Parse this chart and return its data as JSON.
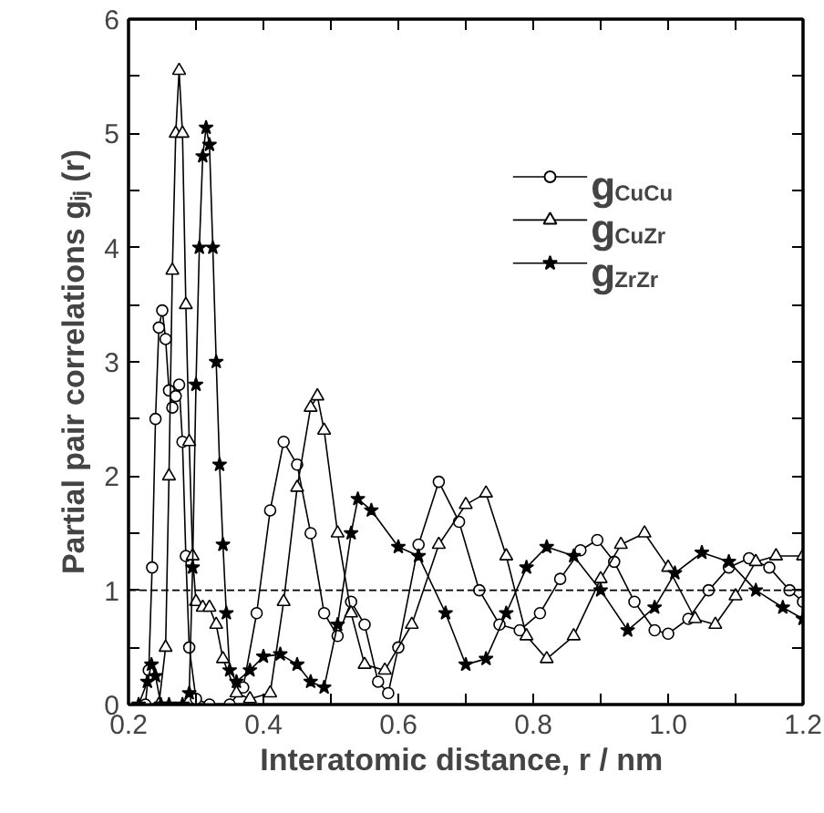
{
  "chart_data": {
    "type": "line",
    "xlabel": "Interatomic distance,  r / nm",
    "ylabel": "Partial pair correlations gᵢⱼ (r)",
    "xlim": [
      0.2,
      1.2
    ],
    "ylim": [
      0,
      6
    ],
    "xticks": [
      0.2,
      {
        "value": 0.3,
        "label": null
      },
      0.4,
      {
        "value": 0.5,
        "label": null
      },
      0.6,
      {
        "value": 0.7,
        "label": null
      },
      0.8,
      {
        "value": 0.9,
        "label": null
      },
      {
        "value": 1.0,
        "label": "1.0"
      },
      {
        "value": 1.1,
        "label": null
      },
      1.2
    ],
    "yticks": [
      0,
      {
        "value": 0.5,
        "label": null
      },
      1,
      {
        "value": 1.5,
        "label": null
      },
      2,
      {
        "value": 2.5,
        "label": null
      },
      3,
      {
        "value": 3.5,
        "label": null
      },
      4,
      {
        "value": 4.5,
        "label": null
      },
      5,
      {
        "value": 5.5,
        "label": null
      },
      6
    ],
    "grid": false,
    "legend": "top right",
    "line_style": "solid",
    "ref_lines": [
      {
        "axis": "y",
        "value": 1,
        "line_style": "dashed"
      }
    ],
    "series": [
      {
        "name": "g$_{CuCu}$",
        "marker": "circle",
        "color": "#000000",
        "x": [
          0.225,
          0.23,
          0.235,
          0.24,
          0.245,
          0.25,
          0.255,
          0.26,
          0.265,
          0.27,
          0.275,
          0.28,
          0.285,
          0.29,
          0.3,
          0.32,
          0.35,
          0.37,
          0.39,
          0.41,
          0.43,
          0.45,
          0.47,
          0.49,
          0.51,
          0.53,
          0.55,
          0.57,
          0.585,
          0.6,
          0.63,
          0.66,
          0.69,
          0.72,
          0.75,
          0.78,
          0.81,
          0.84,
          0.87,
          0.895,
          0.92,
          0.95,
          0.98,
          1.0,
          1.03,
          1.06,
          1.09,
          1.12,
          1.15,
          1.18,
          1.2
        ],
        "values": [
          0,
          0.3,
          1.2,
          2.5,
          3.3,
          3.45,
          3.2,
          2.75,
          2.6,
          2.7,
          2.8,
          2.3,
          1.3,
          0.5,
          0.05,
          0,
          0,
          0.15,
          0.8,
          1.7,
          2.3,
          2.1,
          1.5,
          0.8,
          0.6,
          0.9,
          0.7,
          0.2,
          0.1,
          0.5,
          1.4,
          1.95,
          1.6,
          1.0,
          0.7,
          0.65,
          0.8,
          1.1,
          1.35,
          1.44,
          1.25,
          0.9,
          0.65,
          0.62,
          0.75,
          1.0,
          1.2,
          1.28,
          1.2,
          1.0,
          0.9
        ]
      },
      {
        "name": "g$_{CuZr}$",
        "marker": "triangle",
        "color": "#000000",
        "x": [
          0.245,
          0.255,
          0.26,
          0.265,
          0.27,
          0.275,
          0.28,
          0.285,
          0.29,
          0.295,
          0.3,
          0.31,
          0.32,
          0.33,
          0.34,
          0.36,
          0.38,
          0.41,
          0.43,
          0.45,
          0.47,
          0.48,
          0.49,
          0.51,
          0.53,
          0.55,
          0.58,
          0.62,
          0.66,
          0.7,
          0.73,
          0.76,
          0.79,
          0.82,
          0.86,
          0.9,
          0.93,
          0.965,
          1.0,
          1.04,
          1.07,
          1.1,
          1.13,
          1.16,
          1.2
        ],
        "values": [
          0,
          0.5,
          2.0,
          3.8,
          5.0,
          5.55,
          5.0,
          3.5,
          2.3,
          1.3,
          0.9,
          0.85,
          0.85,
          0.7,
          0.4,
          0.1,
          0.05,
          0.1,
          0.9,
          1.9,
          2.6,
          2.7,
          2.4,
          1.5,
          0.8,
          0.35,
          0.3,
          0.7,
          1.4,
          1.75,
          1.85,
          1.3,
          0.6,
          0.4,
          0.6,
          1.1,
          1.4,
          1.5,
          1.2,
          0.75,
          0.7,
          0.95,
          1.25,
          1.3,
          1.3
        ]
      },
      {
        "name": "g$_{ZrZr}$",
        "marker": "star",
        "color": "#000000",
        "x": [
          0.215,
          0.228,
          0.234,
          0.24,
          0.248,
          0.26,
          0.28,
          0.29,
          0.295,
          0.3,
          0.305,
          0.31,
          0.315,
          0.32,
          0.325,
          0.33,
          0.335,
          0.34,
          0.345,
          0.35,
          0.36,
          0.38,
          0.4,
          0.425,
          0.45,
          0.47,
          0.49,
          0.51,
          0.53,
          0.54,
          0.56,
          0.6,
          0.63,
          0.67,
          0.7,
          0.73,
          0.76,
          0.79,
          0.82,
          0.86,
          0.9,
          0.94,
          0.98,
          1.01,
          1.05,
          1.09,
          1.13,
          1.17,
          1.2
        ],
        "values": [
          0,
          0.2,
          0.35,
          0.25,
          0,
          0,
          0,
          0.1,
          1.2,
          2.8,
          4.0,
          4.8,
          5.05,
          4.9,
          4.0,
          3.0,
          2.1,
          1.4,
          0.8,
          0.3,
          0.2,
          0.3,
          0.42,
          0.44,
          0.35,
          0.2,
          0.15,
          0.7,
          1.5,
          1.8,
          1.7,
          1.38,
          1.3,
          0.8,
          0.35,
          0.4,
          0.8,
          1.2,
          1.38,
          1.3,
          1.0,
          0.65,
          0.85,
          1.15,
          1.33,
          1.25,
          1.0,
          0.85,
          0.75
        ]
      }
    ]
  }
}
